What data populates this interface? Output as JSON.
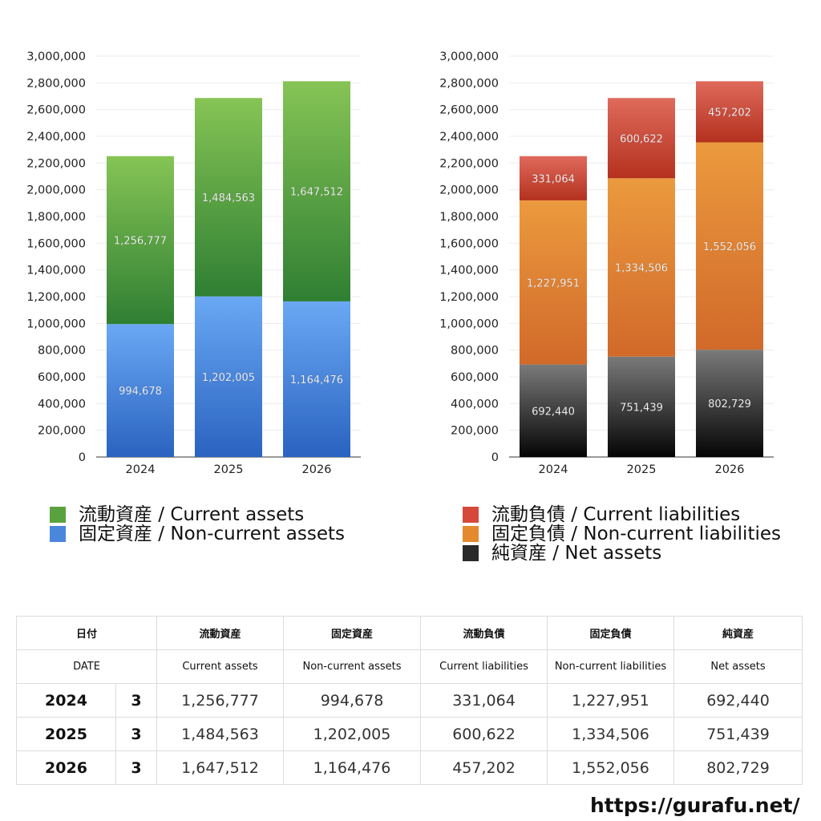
{
  "chart_data": [
    {
      "type": "bar",
      "stacked": true,
      "categories": [
        "2024",
        "2025",
        "2026"
      ],
      "series": [
        {
          "name": "固定資産 / Non-current assets",
          "values": [
            994678,
            1202005,
            1164476
          ],
          "color_top": "#6aa8f4",
          "color_bottom": "#2a63c0"
        },
        {
          "name": "流動資産 / Current assets",
          "values": [
            1256777,
            1484563,
            1647512
          ],
          "color_top": "#86c455",
          "color_bottom": "#2f7f33"
        }
      ],
      "ylim": [
        0,
        3000000
      ],
      "yticks": [
        "0",
        "200,000",
        "400,000",
        "600,000",
        "800,000",
        "1,000,000",
        "1,200,000",
        "1,400,000",
        "1,600,000",
        "1,800,000",
        "2,000,000",
        "2,200,000",
        "2,400,000",
        "2,600,000",
        "2,800,000",
        "3,000,000"
      ],
      "grid": true,
      "legend": "bottom"
    },
    {
      "type": "bar",
      "stacked": true,
      "categories": [
        "2024",
        "2025",
        "2026"
      ],
      "series": [
        {
          "name": "純資産 / Net assets",
          "values": [
            692440,
            751439,
            802729
          ],
          "color_top": "#7a7a7a",
          "color_bottom": "#050505"
        },
        {
          "name": "固定負債 / Non-current liabilities",
          "values": [
            1227951,
            1334506,
            1552056
          ],
          "color_top": "#eb9a3e",
          "color_bottom": "#d1692a"
        },
        {
          "name": "流動負債 / Current liabilities",
          "values": [
            331064,
            600622,
            457202
          ],
          "color_top": "#df6a5b",
          "color_bottom": "#b4311f"
        }
      ],
      "ylim": [
        0,
        3000000
      ],
      "yticks": [
        "0",
        "200,000",
        "400,000",
        "600,000",
        "800,000",
        "1,000,000",
        "1,200,000",
        "1,400,000",
        "1,600,000",
        "1,800,000",
        "2,000,000",
        "2,200,000",
        "2,400,000",
        "2,600,000",
        "2,800,000",
        "3,000,000"
      ],
      "grid": true,
      "legend": "bottom"
    }
  ],
  "legends": {
    "left": [
      {
        "label": "流動資産 / Current assets",
        "color": "#5aa23f"
      },
      {
        "label": "固定資産 / Non-current assets",
        "color": "#4a86db"
      }
    ],
    "right": [
      {
        "label": "流動負債 / Current liabilities",
        "color": "#d6483a"
      },
      {
        "label": "固定負債 / Non-current liabilities",
        "color": "#e5892f"
      },
      {
        "label": "純資産 / Net assets",
        "color": "#2a2a2a"
      }
    ]
  },
  "table": {
    "header_jp": [
      "日付",
      "流動資産",
      "固定資産",
      "流動負債",
      "固定負債",
      "純資産"
    ],
    "header_en": [
      "DATE",
      "Current assets",
      "Non-current assets",
      "Current liabilities",
      "Non-current liabilities",
      "Net assets"
    ],
    "rows": [
      {
        "year": "2024",
        "month": "3",
        "values": [
          "1,256,777",
          "994,678",
          "331,064",
          "1,227,951",
          "692,440"
        ]
      },
      {
        "year": "2025",
        "month": "3",
        "values": [
          "1,484,563",
          "1,202,005",
          "600,622",
          "1,334,506",
          "751,439"
        ]
      },
      {
        "year": "2026",
        "month": "3",
        "values": [
          "1,647,512",
          "1,164,476",
          "457,202",
          "1,552,056",
          "802,729"
        ]
      }
    ]
  },
  "footer": {
    "url": "https://gurafu.net/"
  }
}
